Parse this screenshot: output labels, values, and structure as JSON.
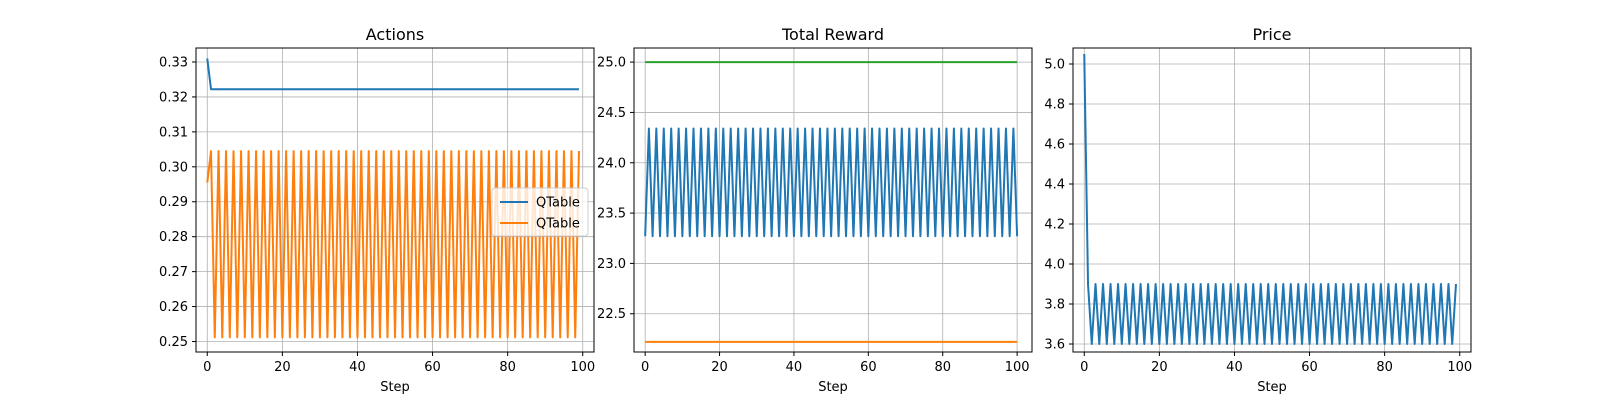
{
  "chart_data": [
    {
      "type": "line",
      "title": "Actions",
      "xlabel": "Step",
      "ylabel": "",
      "xlim": [
        -3,
        103
      ],
      "ylim": [
        0.247,
        0.334
      ],
      "xticks": [
        0,
        20,
        40,
        60,
        80,
        100
      ],
      "yticks": [
        0.25,
        0.26,
        0.27,
        0.28,
        0.29,
        0.3,
        0.31,
        0.32,
        0.33
      ],
      "ytick_decimals": 2,
      "grid": true,
      "legend": {
        "position": "right",
        "entries": [
          "QTable",
          "QTable"
        ]
      },
      "series": [
        {
          "name": "QTable",
          "color": "#1f77b4",
          "pattern": {
            "type": "decay",
            "n": 100,
            "first": 0.331,
            "rest": 0.3222
          }
        },
        {
          "name": "QTable",
          "color": "#ff7f0e",
          "pattern": {
            "type": "alternate",
            "n": 100,
            "first": 0.2955,
            "even": 0.2512,
            "odd": 0.3045
          }
        }
      ]
    },
    {
      "type": "line",
      "title": "Total Reward",
      "xlabel": "Step",
      "ylabel": "",
      "xlim": [
        -3,
        104
      ],
      "ylim": [
        22.12,
        25.14
      ],
      "xticks": [
        0,
        20,
        40,
        60,
        80,
        100
      ],
      "yticks": [
        22.5,
        23.0,
        23.5,
        24.0,
        24.5,
        25.0
      ],
      "ytick_decimals": 1,
      "grid": true,
      "series": [
        {
          "color": "#1f77b4",
          "pattern": {
            "type": "alternate",
            "n": 101,
            "first": 23.27,
            "even": 23.27,
            "odd": 24.34
          }
        },
        {
          "color": "#2ca02c",
          "pattern": {
            "type": "constant",
            "n": 101,
            "value": 25.0
          }
        },
        {
          "color": "#ff7f0e",
          "pattern": {
            "type": "constant",
            "n": 101,
            "value": 22.22
          }
        }
      ]
    },
    {
      "type": "line",
      "title": "Price",
      "xlabel": "Step",
      "ylabel": "",
      "xlim": [
        -3,
        103
      ],
      "ylim": [
        3.56,
        5.08
      ],
      "xticks": [
        0,
        20,
        40,
        60,
        80,
        100
      ],
      "yticks": [
        3.6,
        3.8,
        4.0,
        4.2,
        4.4,
        4.6,
        4.8,
        5.0
      ],
      "ytick_decimals": 1,
      "grid": true,
      "series": [
        {
          "color": "#1f77b4",
          "pattern": {
            "type": "alternate",
            "n": 100,
            "first": 5.05,
            "even": 3.6,
            "odd": 3.9
          }
        }
      ]
    }
  ]
}
